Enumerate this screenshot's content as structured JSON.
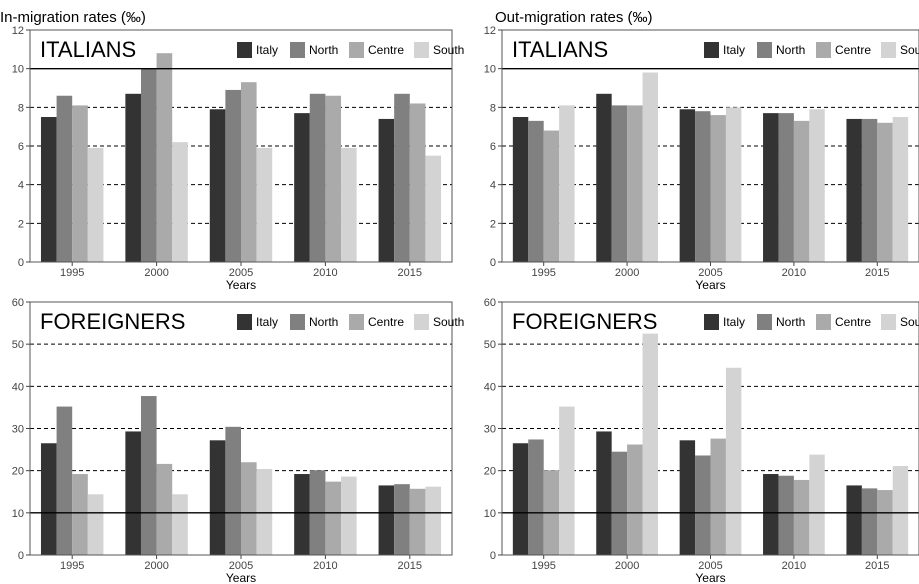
{
  "column_titles": [
    "In-migration rates (‰)",
    "Out-migration rates (‰)"
  ],
  "colors": {
    "Italy": "#333333",
    "North": "#808080",
    "Centre": "#aaaaaa",
    "South": "#d3d3d3"
  },
  "chart_data": [
    {
      "type": "bar",
      "group_label": "ITALIANS",
      "categories": [
        "1995",
        "2000",
        "2005",
        "2010",
        "2015"
      ],
      "xlabel": "Years",
      "ylim": [
        0,
        12
      ],
      "yticks": [
        0,
        2,
        4,
        6,
        8,
        10,
        12
      ],
      "reference_line": 10,
      "series": [
        {
          "name": "Italy",
          "values": [
            7.5,
            8.7,
            7.9,
            7.7,
            7.4
          ]
        },
        {
          "name": "North",
          "values": [
            8.6,
            10.0,
            8.9,
            8.7,
            8.7
          ]
        },
        {
          "name": "Centre",
          "values": [
            8.1,
            10.8,
            9.3,
            8.6,
            8.2
          ]
        },
        {
          "name": "South",
          "values": [
            5.9,
            6.2,
            5.9,
            5.9,
            5.5
          ]
        }
      ],
      "legend": "top-right"
    },
    {
      "type": "bar",
      "group_label": "ITALIANS",
      "categories": [
        "1995",
        "2000",
        "2005",
        "2010",
        "2015"
      ],
      "xlabel": "Years",
      "ylim": [
        0,
        12
      ],
      "yticks": [
        0,
        2,
        4,
        6,
        8,
        10,
        12
      ],
      "reference_line": 10,
      "series": [
        {
          "name": "Italy",
          "values": [
            7.5,
            8.7,
            7.9,
            7.7,
            7.4
          ]
        },
        {
          "name": "North",
          "values": [
            7.3,
            8.1,
            7.8,
            7.7,
            7.4
          ]
        },
        {
          "name": "Centre",
          "values": [
            6.8,
            8.1,
            7.6,
            7.3,
            7.2
          ]
        },
        {
          "name": "South",
          "values": [
            8.1,
            9.8,
            8.0,
            7.9,
            7.5
          ]
        }
      ],
      "legend": "top-right"
    },
    {
      "type": "bar",
      "group_label": "FOREIGNERS",
      "categories": [
        "1995",
        "2000",
        "2005",
        "2010",
        "2015"
      ],
      "xlabel": "Years",
      "ylim": [
        0,
        60
      ],
      "yticks": [
        0,
        10,
        20,
        30,
        40,
        50,
        60
      ],
      "reference_line": 10,
      "series": [
        {
          "name": "Italy",
          "values": [
            26.5,
            29.3,
            27.2,
            19.2,
            16.5
          ]
        },
        {
          "name": "North",
          "values": [
            35.2,
            37.7,
            30.4,
            20.1,
            16.8
          ]
        },
        {
          "name": "Centre",
          "values": [
            19.2,
            21.6,
            22.0,
            17.4,
            15.7
          ]
        },
        {
          "name": "South",
          "values": [
            14.4,
            14.4,
            20.4,
            18.6,
            16.2
          ]
        }
      ],
      "legend": "top-right"
    },
    {
      "type": "bar",
      "group_label": "FOREIGNERS",
      "categories": [
        "1995",
        "2000",
        "2005",
        "2010",
        "2015"
      ],
      "xlabel": "Years",
      "ylim": [
        0,
        60
      ],
      "yticks": [
        0,
        10,
        20,
        30,
        40,
        50,
        60
      ],
      "reference_line": 10,
      "series": [
        {
          "name": "Italy",
          "values": [
            26.5,
            29.3,
            27.2,
            19.2,
            16.5
          ]
        },
        {
          "name": "North",
          "values": [
            27.4,
            24.5,
            23.6,
            18.8,
            15.8
          ]
        },
        {
          "name": "Centre",
          "values": [
            20.1,
            26.2,
            27.6,
            17.8,
            15.4
          ]
        },
        {
          "name": "South",
          "values": [
            35.2,
            52.5,
            44.4,
            23.8,
            21.1
          ]
        }
      ],
      "legend": "top-right"
    }
  ]
}
